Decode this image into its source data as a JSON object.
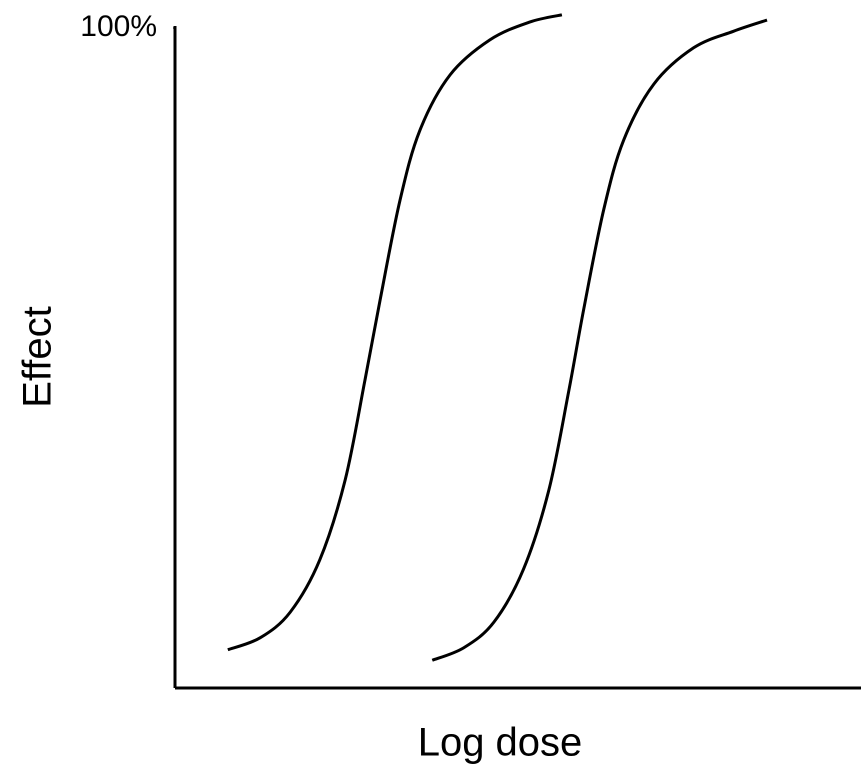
{
  "chart_data": {
    "type": "line",
    "x_label": "Log dose",
    "y_label": "Effect",
    "xlim": [
      0,
      100
    ],
    "ylim": [
      0,
      100
    ],
    "yticks": [
      {
        "value": 100,
        "label": "100%"
      }
    ],
    "grid": false,
    "series": [
      {
        "color": "#000000",
        "x": [
          7.7,
          12.4,
          16.8,
          21.1,
          24.8,
          27.7,
          29.9,
          32.8,
          35.7,
          40.1,
          45.9,
          51.7,
          56.4
        ],
        "values": [
          5.8,
          7.6,
          11.5,
          19.4,
          31.5,
          46.7,
          58.8,
          73.9,
          84.5,
          92.9,
          98.2,
          100.9,
          102.0
        ]
      },
      {
        "color": "#000000",
        "x": [
          37.5,
          42.1,
          46.5,
          50.8,
          54.5,
          57.4,
          59.6,
          62.5,
          65.4,
          69.8,
          75.6,
          81.4,
          86.3
        ],
        "values": [
          4.2,
          6.1,
          10.0,
          18.0,
          30.0,
          45.0,
          57.5,
          72.5,
          83.0,
          91.5,
          97.0,
          99.5,
          101.2
        ]
      }
    ]
  }
}
